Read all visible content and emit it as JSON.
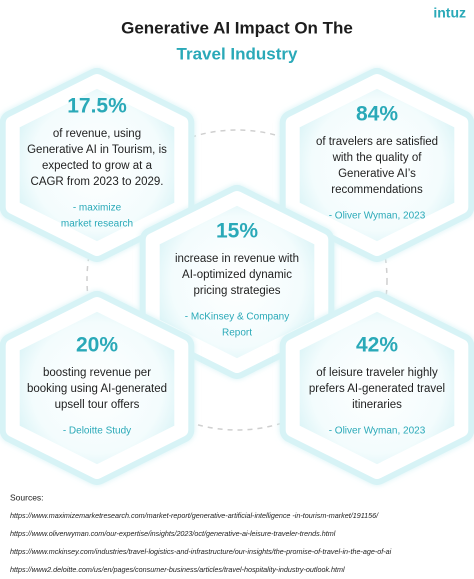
{
  "header": {
    "title": "Generative AI Impact On The",
    "subtitle": "Travel Industry",
    "logo": "intuz"
  },
  "cards": [
    {
      "stat": "17.5%",
      "lines": [
        "of revenue, using",
        "Generative AI in Tourism, is",
        "expected to grow at a",
        "CAGR from 2023 to 2029."
      ],
      "source": [
        "- maximize",
        "market research"
      ]
    },
    {
      "stat": "84%",
      "lines": [
        "of travelers are satisfied",
        "with the quality of",
        "Generative AI’s",
        "recommendations"
      ],
      "source": [
        "- Oliver Wyman, 2023"
      ]
    },
    {
      "stat": "15%",
      "lines": [
        "increase in revenue with",
        "AI-optimized dynamic",
        "pricing strategies"
      ],
      "source": [
        "- McKinsey & Company",
        "Report"
      ]
    },
    {
      "stat": "20%",
      "lines": [
        "boosting revenue per",
        "booking using AI-generated",
        "upsell tour offers"
      ],
      "source": [
        "- Deloitte Study"
      ]
    },
    {
      "stat": "42%",
      "lines": [
        "of leisure traveler highly",
        "prefers AI-generated travel",
        "itineraries"
      ],
      "source": [
        "- Oliver Wyman, 2023"
      ]
    }
  ],
  "sources": {
    "heading": "Sources:",
    "items": [
      "https://www.maximizemarketresearch.com/market-report/generative-artificial-intelligence -in-tourism-market/191156/",
      "https://www.oliverwyman.com/our-expertise/insights/2023/oct/generative-ai-leisure-traveler-trends.html",
      "https://www.mckinsey.com/industries/travel-logistics-and-infrastructure/our-insights/the-promise-of-travel-in-the-age-of-ai",
      "https://www2.deloitte.com/us/en/pages/consumer-business/articles/travel-hospitality-industry-outlook.html"
    ]
  }
}
